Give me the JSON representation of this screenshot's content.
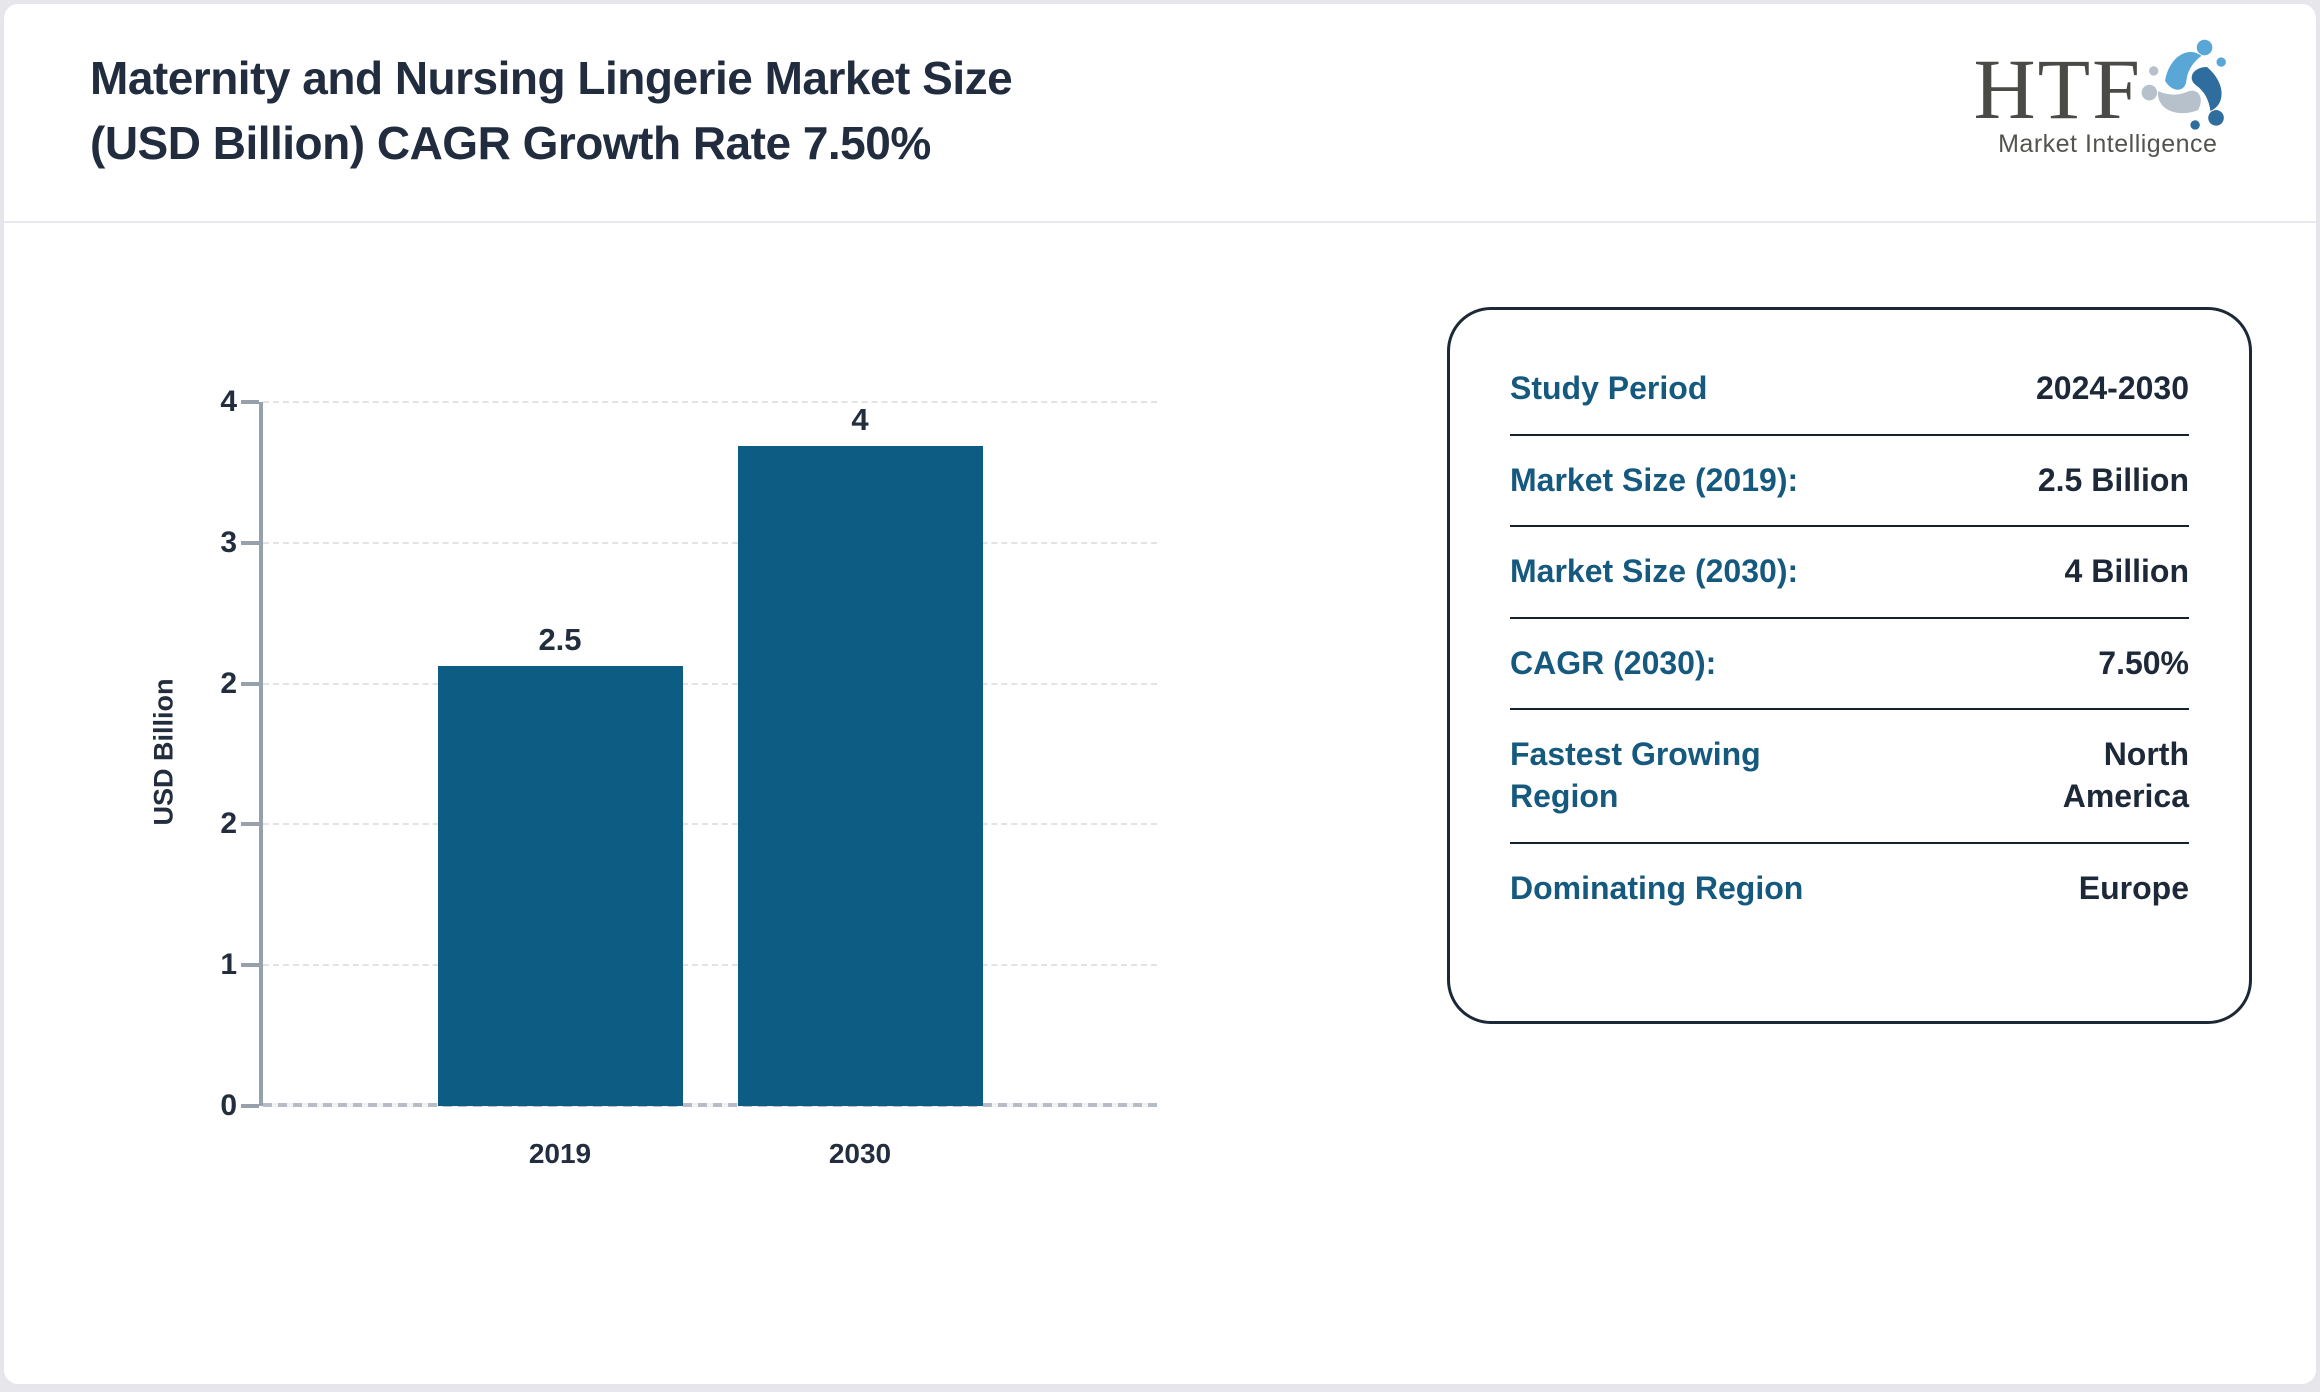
{
  "page": {
    "background": "#e6e6eb",
    "card_border": "#e5e5ec"
  },
  "header": {
    "title_line1": "Maternity and Nursing Lingerie Market Size",
    "title_line2": "(USD Billion) CAGR Growth Rate 7.50%"
  },
  "logo": {
    "brand": "HTF",
    "subtitle": "Market Intelligence",
    "icon": "triskelion-figures-icon",
    "colors": {
      "light_blue": "#58a7d7",
      "dark_blue": "#2f6d9e",
      "gray": "#b6c1cb",
      "text": "#4a4a46"
    }
  },
  "chart_data": {
    "type": "bar",
    "title": "Maternity and Nursing Lingerie Market Size (USD Billion) CAGR Growth Rate 7.50%",
    "categories": [
      "2019",
      "2030"
    ],
    "values": [
      2.5,
      4
    ],
    "bar_labels": [
      "2.5",
      "4"
    ],
    "xlabel": "",
    "ylabel": "USD Billion",
    "ylim": [
      0,
      4
    ],
    "ytick_labels_bottom_to_top": [
      "0",
      "1",
      "2",
      "2",
      "3",
      "4"
    ],
    "grid": "horizontal dashed",
    "legend": "none",
    "bar_color": "#0d5c84"
  },
  "panel": {
    "label_color": "#15597f",
    "value_color": "#1d2938",
    "rows": [
      {
        "label": "Study Period",
        "value": "2024-2030"
      },
      {
        "label": "Market Size (2019):",
        "value": "2.5 Billion"
      },
      {
        "label": "Market Size (2030):",
        "value": "4 Billion"
      },
      {
        "label": "CAGR (2030):",
        "value": "7.50%"
      },
      {
        "label": "Fastest Growing Region",
        "value": "North America"
      },
      {
        "label": "Dominating Region",
        "value": "Europe"
      }
    ]
  }
}
